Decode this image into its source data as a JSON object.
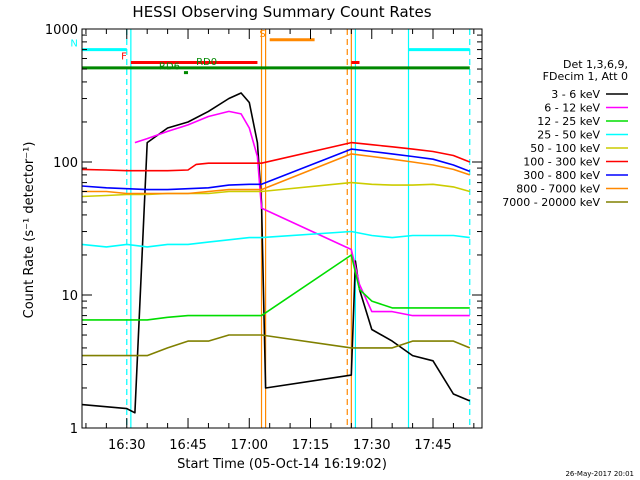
{
  "chart_data": {
    "type": "line",
    "title": "HESSI Observing Summary Count Rates",
    "ylabel": "Count Rate (s⁻¹ detector⁻¹)",
    "xlabel": "Start Time (05-Oct-14 16:19:02)",
    "y_scale": "log",
    "ylim": [
      1,
      1000
    ],
    "xlim": [
      "16:19:02",
      "17:57:00"
    ],
    "x_ticks": [
      "16:30",
      "16:45",
      "17:00",
      "17:15",
      "17:30",
      "17:45"
    ],
    "y_ticks": [
      "1",
      "10",
      "100",
      "1000"
    ],
    "legend_header": [
      "Det 1,3,6,9,",
      "FDecim 1, Att 0"
    ],
    "legend_placement": "right",
    "footer_date": "26-May-2017 20:01",
    "series": [
      {
        "name": "3 - 6 keV",
        "color": "#000000",
        "points": [
          [
            "16:19",
            1.5
          ],
          [
            "16:30",
            1.4
          ],
          [
            "16:32",
            1.3
          ],
          [
            "16:35",
            140
          ],
          [
            "16:40",
            180
          ],
          [
            "16:45",
            200
          ],
          [
            "16:50",
            240
          ],
          [
            "16:55",
            300
          ],
          [
            "16:58",
            330
          ],
          [
            "17:00",
            280
          ],
          [
            "17:02",
            140
          ],
          [
            "17:03",
            50
          ],
          [
            "17:04",
            2
          ],
          [
            "17:25",
            2.5
          ],
          [
            "17:26",
            18
          ],
          [
            "17:27",
            11
          ],
          [
            "17:30",
            5.5
          ],
          [
            "17:35",
            4.5
          ],
          [
            "17:40",
            3.5
          ],
          [
            "17:45",
            3.2
          ],
          [
            "17:50",
            1.8
          ],
          [
            "17:54",
            1.6
          ]
        ]
      },
      {
        "name": "6 - 12 keV",
        "color": "#ff00ff",
        "points": [
          [
            "16:32",
            140
          ],
          [
            "16:35",
            150
          ],
          [
            "16:40",
            170
          ],
          [
            "16:45",
            190
          ],
          [
            "16:50",
            220
          ],
          [
            "16:55",
            240
          ],
          [
            "16:58",
            230
          ],
          [
            "17:00",
            180
          ],
          [
            "17:02",
            110
          ],
          [
            "17:03",
            45
          ],
          [
            "17:25",
            22
          ],
          [
            "17:27",
            12
          ],
          [
            "17:30",
            7.5
          ],
          [
            "17:35",
            7.5
          ],
          [
            "17:40",
            7
          ],
          [
            "17:45",
            7
          ],
          [
            "17:50",
            7
          ],
          [
            "17:54",
            7
          ]
        ]
      },
      {
        "name": "12 - 25 keV",
        "color": "#00dd00",
        "points": [
          [
            "16:19",
            6.5
          ],
          [
            "16:25",
            6.5
          ],
          [
            "16:30",
            6.5
          ],
          [
            "16:35",
            6.5
          ],
          [
            "16:40",
            6.8
          ],
          [
            "16:45",
            7
          ],
          [
            "16:50",
            7
          ],
          [
            "16:55",
            7
          ],
          [
            "17:00",
            7
          ],
          [
            "17:03",
            7
          ],
          [
            "17:25",
            20
          ],
          [
            "17:27",
            11
          ],
          [
            "17:30",
            9
          ],
          [
            "17:35",
            8
          ],
          [
            "17:40",
            8
          ],
          [
            "17:45",
            8
          ],
          [
            "17:50",
            8
          ],
          [
            "17:54",
            8
          ]
        ]
      },
      {
        "name": "25 - 50 keV",
        "color": "#00ffff",
        "points": [
          [
            "16:19",
            24
          ],
          [
            "16:25",
            23
          ],
          [
            "16:30",
            24
          ],
          [
            "16:35",
            23
          ],
          [
            "16:40",
            24
          ],
          [
            "16:45",
            24
          ],
          [
            "16:50",
            25
          ],
          [
            "16:55",
            26
          ],
          [
            "17:00",
            27
          ],
          [
            "17:03",
            27
          ],
          [
            "17:25",
            30
          ],
          [
            "17:30",
            28
          ],
          [
            "17:35",
            27
          ],
          [
            "17:40",
            28
          ],
          [
            "17:45",
            28
          ],
          [
            "17:50",
            28
          ],
          [
            "17:54",
            27
          ]
        ]
      },
      {
        "name": "50 - 100 keV",
        "color": "#cccc00",
        "points": [
          [
            "16:19",
            55
          ],
          [
            "16:25",
            56
          ],
          [
            "16:30",
            57
          ],
          [
            "16:35",
            57
          ],
          [
            "16:40",
            58
          ],
          [
            "16:45",
            58
          ],
          [
            "16:50",
            58
          ],
          [
            "16:55",
            60
          ],
          [
            "17:00",
            60
          ],
          [
            "17:03",
            60
          ],
          [
            "17:25",
            70
          ],
          [
            "17:30",
            68
          ],
          [
            "17:35",
            67
          ],
          [
            "17:40",
            67
          ],
          [
            "17:45",
            68
          ],
          [
            "17:50",
            65
          ],
          [
            "17:54",
            60
          ]
        ]
      },
      {
        "name": "100 - 300 keV",
        "color": "#ff0000",
        "points": [
          [
            "16:19",
            88
          ],
          [
            "16:25",
            87
          ],
          [
            "16:30",
            86
          ],
          [
            "16:35",
            86
          ],
          [
            "16:40",
            86
          ],
          [
            "16:45",
            87
          ],
          [
            "16:47",
            96
          ],
          [
            "16:50",
            98
          ],
          [
            "16:55",
            98
          ],
          [
            "17:00",
            98
          ],
          [
            "17:03",
            98
          ],
          [
            "17:25",
            140
          ],
          [
            "17:30",
            135
          ],
          [
            "17:35",
            130
          ],
          [
            "17:40",
            125
          ],
          [
            "17:45",
            120
          ],
          [
            "17:50",
            112
          ],
          [
            "17:54",
            100
          ]
        ]
      },
      {
        "name": "300 - 800 keV",
        "color": "#0000ff",
        "points": [
          [
            "16:19",
            66
          ],
          [
            "16:25",
            64
          ],
          [
            "16:30",
            63
          ],
          [
            "16:35",
            62
          ],
          [
            "16:40",
            62
          ],
          [
            "16:45",
            63
          ],
          [
            "16:50",
            64
          ],
          [
            "16:55",
            67
          ],
          [
            "17:00",
            68
          ],
          [
            "17:03",
            68
          ],
          [
            "17:25",
            125
          ],
          [
            "17:30",
            120
          ],
          [
            "17:35",
            115
          ],
          [
            "17:40",
            110
          ],
          [
            "17:45",
            105
          ],
          [
            "17:50",
            95
          ],
          [
            "17:54",
            85
          ]
        ]
      },
      {
        "name": "800 - 7000 keV",
        "color": "#ff8800",
        "points": [
          [
            "16:19",
            60
          ],
          [
            "16:25",
            60
          ],
          [
            "16:30",
            58
          ],
          [
            "16:35",
            58
          ],
          [
            "16:40",
            58
          ],
          [
            "16:45",
            58
          ],
          [
            "16:50",
            60
          ],
          [
            "16:55",
            62
          ],
          [
            "17:00",
            62
          ],
          [
            "17:03",
            62
          ],
          [
            "17:25",
            115
          ],
          [
            "17:30",
            110
          ],
          [
            "17:35",
            105
          ],
          [
            "17:40",
            100
          ],
          [
            "17:45",
            95
          ],
          [
            "17:50",
            88
          ],
          [
            "17:54",
            80
          ]
        ]
      },
      {
        "name": "7000 - 20000 keV",
        "color": "#808000",
        "points": [
          [
            "16:19",
            3.5
          ],
          [
            "16:25",
            3.5
          ],
          [
            "16:30",
            3.5
          ],
          [
            "16:35",
            3.5
          ],
          [
            "16:40",
            4
          ],
          [
            "16:45",
            4.5
          ],
          [
            "16:50",
            4.5
          ],
          [
            "16:55",
            5
          ],
          [
            "17:00",
            5
          ],
          [
            "17:03",
            5
          ],
          [
            "17:25",
            4
          ],
          [
            "17:30",
            4
          ],
          [
            "17:35",
            4
          ],
          [
            "17:40",
            4.5
          ],
          [
            "17:45",
            4.5
          ],
          [
            "17:50",
            4.5
          ],
          [
            "17:54",
            4
          ]
        ]
      }
    ],
    "flag_bars": [
      {
        "label": "N",
        "color": "#00ffff",
        "y": 700,
        "spans": [
          [
            "16:19",
            "16:30"
          ],
          [
            "17:39",
            "17:54"
          ]
        ]
      },
      {
        "label": "F",
        "color": "#ff0000",
        "y": 560,
        "spans": [
          [
            "16:31",
            "17:02"
          ],
          [
            "17:25",
            "17:27"
          ]
        ]
      },
      {
        "label": "S",
        "color": "#ff8800",
        "y": 830,
        "spans": [
          [
            "17:05",
            "17:16"
          ]
        ]
      },
      {
        "label": "",
        "color": "#008800",
        "y": 510,
        "spans": [
          [
            "16:19",
            "17:54"
          ]
        ]
      },
      {
        "label": "RD6",
        "color": "#008800",
        "y": 470,
        "spans": [
          [
            "16:44",
            "16:45"
          ]
        ]
      },
      {
        "label": "RD0",
        "color": "#008800",
        "y": 510,
        "spans": []
      }
    ],
    "vlines": [
      {
        "t": "16:30",
        "color": "#00ffff",
        "style": "dashed"
      },
      {
        "t": "16:31",
        "color": "#00ffff",
        "style": "solid"
      },
      {
        "t": "17:03",
        "color": "#ff8800",
        "style": "solid"
      },
      {
        "t": "17:04",
        "color": "#ff8800",
        "style": "solid"
      },
      {
        "t": "17:25",
        "color": "#ff8800",
        "style": "solid"
      },
      {
        "t": "17:24",
        "color": "#ff8800",
        "style": "dashed"
      },
      {
        "t": "17:26",
        "color": "#00ffff",
        "style": "solid"
      },
      {
        "t": "17:39",
        "color": "#00ffff",
        "style": "solid"
      },
      {
        "t": "17:54",
        "color": "#00ffff",
        "style": "dashed"
      }
    ]
  }
}
